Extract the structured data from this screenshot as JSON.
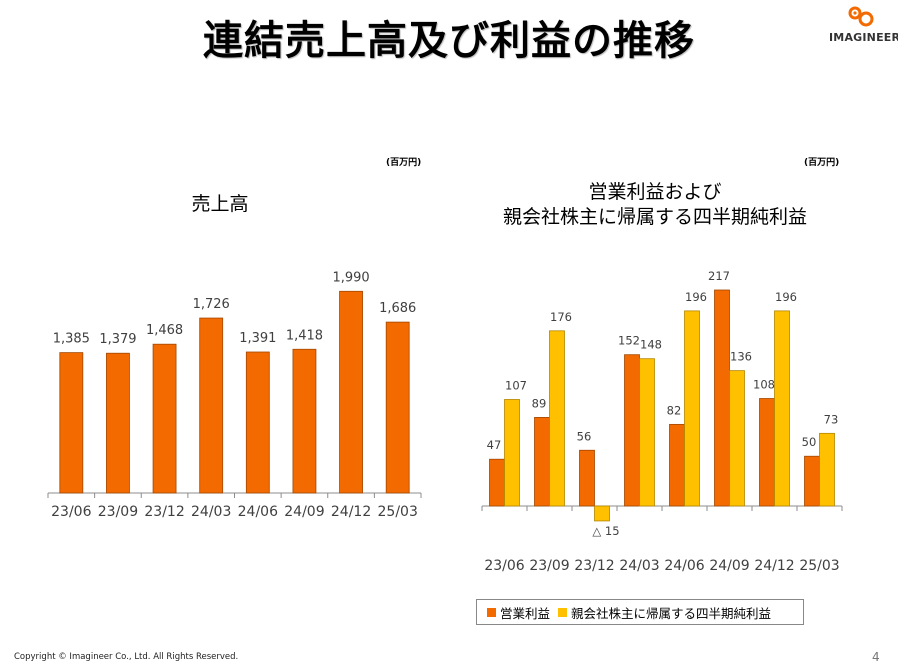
{
  "page": {
    "title": "連結売上高及び利益の推移",
    "logo_text": "IMAGINEER",
    "footer": "Copyright ©  Imagineer Co., Ltd. All Rights Reserved.",
    "page_number": "4"
  },
  "colors": {
    "orange": "#F26A00",
    "yellow": "#FFC000",
    "axis": "#8c8c8c"
  },
  "chart_data": [
    {
      "type": "bar",
      "title": "売上高",
      "unit": "(百万円)",
      "categories": [
        "23/06",
        "23/09",
        "23/12",
        "24/03",
        "24/06",
        "24/09",
        "24/12",
        "25/03"
      ],
      "series": [
        {
          "values": [
            1385,
            1379,
            1468,
            1726,
            1391,
            1418,
            1990,
            1686
          ],
          "labels": [
            "1,385",
            "1,379",
            "1,468",
            "1,726",
            "1,391",
            "1,418",
            "1,990",
            "1,686"
          ],
          "color": "#F26A00"
        }
      ],
      "ylim": [
        0,
        2200
      ],
      "grid": false
    },
    {
      "type": "bar",
      "title_lines": [
        "営業利益および",
        "親会社株主に帰属する四半期純利益"
      ],
      "unit": "(百万円)",
      "categories": [
        "23/06",
        "23/09",
        "23/12",
        "24/03",
        "24/06",
        "24/09",
        "24/12",
        "25/03"
      ],
      "series": [
        {
          "name": "営業利益",
          "values": [
            47,
            89,
            56,
            152,
            82,
            217,
            108,
            50
          ],
          "labels": [
            "47",
            "89",
            "56",
            "152",
            "82",
            "217",
            "108",
            "50"
          ],
          "color": "#F26A00"
        },
        {
          "name": "親会社株主に帰属する四半期純利益",
          "values": [
            107,
            176,
            -15,
            148,
            196,
            136,
            196,
            73
          ],
          "labels": [
            "107",
            "176",
            "△ 15",
            "148",
            "196",
            "136",
            "196",
            "73"
          ],
          "color": "#FFC000"
        }
      ],
      "ylim": [
        -30,
        240
      ],
      "grid": false,
      "legend": "bottom"
    }
  ]
}
